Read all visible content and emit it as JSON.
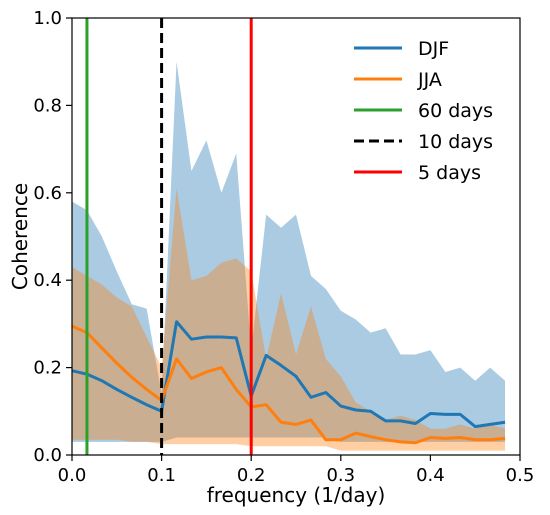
{
  "chart_data": {
    "type": "line",
    "xlabel": "frequency (1/day)",
    "ylabel": "Coherence",
    "xlim": [
      0.0,
      0.5
    ],
    "ylim": [
      0.0,
      1.0
    ],
    "xticks": [
      "0.0",
      "0.1",
      "0.2",
      "0.3",
      "0.4",
      "0.5"
    ],
    "yticks": [
      "0.0",
      "0.2",
      "0.4",
      "0.6",
      "0.8",
      "1.0"
    ],
    "grid": false,
    "legend_position": "top-right",
    "series": [
      {
        "name": "DJF",
        "color": "#1f77b4",
        "x": [
          0.0,
          0.0167,
          0.0333,
          0.05,
          0.0667,
          0.0833,
          0.1,
          0.1167,
          0.1333,
          0.15,
          0.1667,
          0.1833,
          0.2,
          0.2167,
          0.2333,
          0.25,
          0.2667,
          0.2833,
          0.3,
          0.3167,
          0.3333,
          0.35,
          0.3667,
          0.3833,
          0.4,
          0.4167,
          0.4333,
          0.45,
          0.4667,
          0.4833
        ],
        "values": [
          0.193,
          0.185,
          0.17,
          0.15,
          0.132,
          0.115,
          0.1,
          0.305,
          0.265,
          0.27,
          0.27,
          0.268,
          0.135,
          0.228,
          0.205,
          0.18,
          0.132,
          0.143,
          0.112,
          0.103,
          0.1,
          0.078,
          0.078,
          0.072,
          0.095,
          0.093,
          0.093,
          0.065,
          0.07,
          0.075
        ],
        "band_upper": [
          0.58,
          0.56,
          0.5,
          0.42,
          0.345,
          0.335,
          0.14,
          0.9,
          0.65,
          0.72,
          0.6,
          0.69,
          0.24,
          0.55,
          0.52,
          0.55,
          0.41,
          0.38,
          0.33,
          0.31,
          0.28,
          0.29,
          0.23,
          0.23,
          0.24,
          0.19,
          0.2,
          0.17,
          0.2,
          0.17
        ],
        "band_lower": [
          0.03,
          0.03,
          0.03,
          0.03,
          0.03,
          0.03,
          0.03,
          0.04,
          0.04,
          0.04,
          0.04,
          0.04,
          0.04,
          0.04,
          0.04,
          0.04,
          0.04,
          0.04,
          0.03,
          0.03,
          0.03,
          0.03,
          0.03,
          0.03,
          0.03,
          0.03,
          0.03,
          0.03,
          0.03,
          0.03
        ]
      },
      {
        "name": "JJA",
        "color": "#ff7f0e",
        "x": [
          0.0,
          0.0167,
          0.0333,
          0.05,
          0.0667,
          0.0833,
          0.1,
          0.1167,
          0.1333,
          0.15,
          0.1667,
          0.1833,
          0.2,
          0.2167,
          0.2333,
          0.25,
          0.2667,
          0.2833,
          0.3,
          0.3167,
          0.3333,
          0.35,
          0.3667,
          0.3833,
          0.4,
          0.4167,
          0.4333,
          0.45,
          0.4667,
          0.4833
        ],
        "values": [
          0.295,
          0.28,
          0.245,
          0.21,
          0.178,
          0.15,
          0.125,
          0.22,
          0.175,
          0.19,
          0.2,
          0.15,
          0.11,
          0.115,
          0.075,
          0.07,
          0.08,
          0.035,
          0.035,
          0.05,
          0.042,
          0.035,
          0.03,
          0.028,
          0.04,
          0.038,
          0.04,
          0.035,
          0.035,
          0.038
        ],
        "band_upper": [
          0.43,
          0.41,
          0.39,
          0.36,
          0.34,
          0.27,
          0.2,
          0.61,
          0.4,
          0.41,
          0.44,
          0.45,
          0.42,
          0.22,
          0.37,
          0.23,
          0.34,
          0.22,
          0.18,
          0.12,
          0.1,
          0.08,
          0.09,
          0.08,
          0.06,
          0.06,
          0.07,
          0.06,
          0.07,
          0.06
        ],
        "band_lower": [
          0.035,
          0.035,
          0.035,
          0.035,
          0.03,
          0.03,
          0.025,
          0.025,
          0.025,
          0.025,
          0.025,
          0.025,
          0.02,
          0.02,
          0.02,
          0.02,
          0.02,
          0.02,
          0.01,
          0.01,
          0.01,
          0.01,
          0.01,
          0.01,
          0.01,
          0.01,
          0.01,
          0.01,
          0.01,
          0.01
        ]
      }
    ],
    "vlines": [
      {
        "name": "60 days",
        "x": 0.0167,
        "color": "#2ca02c",
        "style": "solid"
      },
      {
        "name": "10 days",
        "x": 0.1,
        "color": "#000000",
        "style": "dashed"
      },
      {
        "name": "5   days",
        "x": 0.2,
        "color": "#ff0000",
        "style": "solid"
      }
    ]
  }
}
